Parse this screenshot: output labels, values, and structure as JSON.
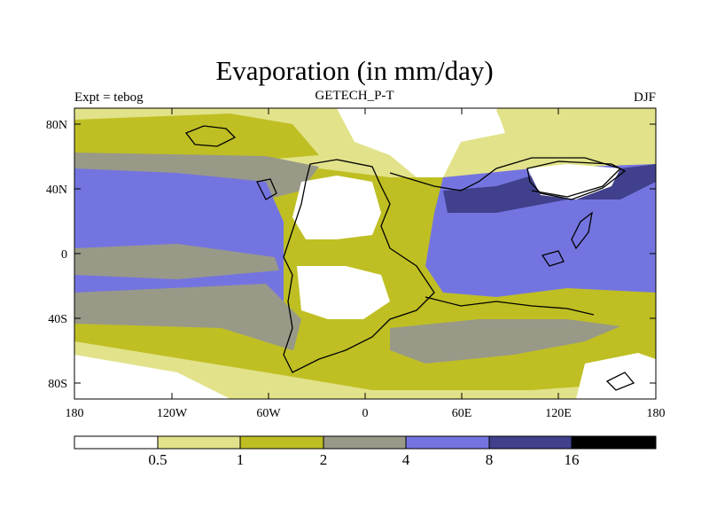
{
  "title": "Evaporation (in mm/day)",
  "subtitle_left": "Expt = tebog",
  "subtitle_center": "GETECH_P-T",
  "subtitle_right": "DJF",
  "lat_ticks": [
    "80N",
    "40N",
    "0",
    "40S",
    "80S"
  ],
  "lon_ticks": [
    "180",
    "120W",
    "60W",
    "0",
    "60E",
    "120E",
    "180"
  ],
  "colorbar": {
    "labels": [
      "0.5",
      "1",
      "2",
      "4",
      "8",
      "16"
    ],
    "colors": [
      "#ffffff",
      "#e2e28a",
      "#bfbf24",
      "#999988",
      "#7474e0",
      "#40408c",
      "#000000"
    ]
  },
  "palette": {
    "bg_low": "#ffffff",
    "c1": "#e2e28a",
    "c2": "#bfbf24",
    "c3": "#999988",
    "c4": "#7474e0",
    "c5": "#40408c",
    "coast": "#000000"
  }
}
